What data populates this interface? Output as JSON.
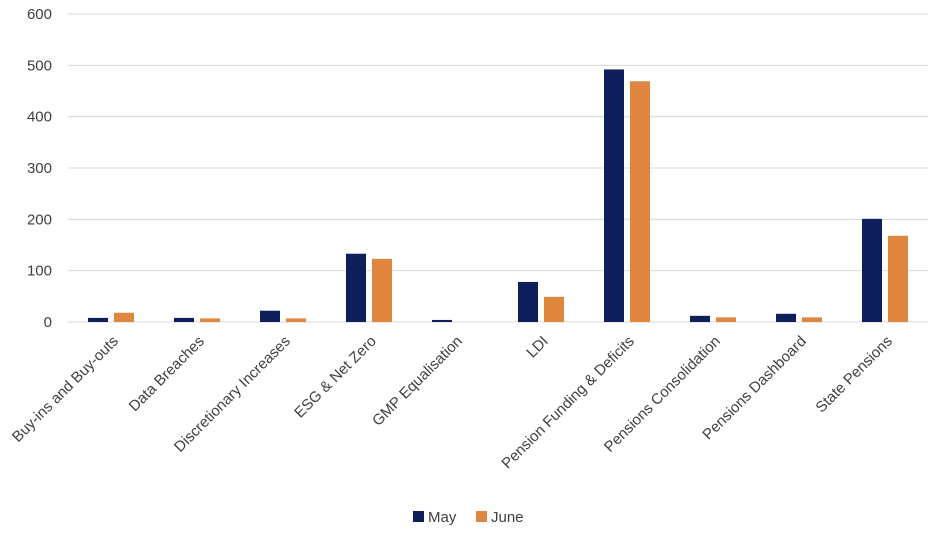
{
  "chart_data": {
    "type": "bar",
    "categories": [
      "Buy-ins and Buy-outs",
      "Data Breaches",
      "Discretionary Increases",
      "ESG & Net Zero",
      "GMP Equalisation",
      "LDI",
      "Pension Funding & Deficits",
      "Pensions Consolidation",
      "Pensions Dashboard",
      "State Pensions"
    ],
    "series": [
      {
        "name": "May",
        "color": "#0e1f5b",
        "values": [
          8,
          8,
          22,
          133,
          4,
          78,
          492,
          12,
          16,
          201
        ]
      },
      {
        "name": "June",
        "color": "#e0873f",
        "values": [
          18,
          7,
          7,
          123,
          0,
          49,
          469,
          9,
          9,
          168
        ]
      }
    ],
    "yticks": [
      "0",
      "100",
      "200",
      "300",
      "400",
      "500",
      "600"
    ],
    "ylim": [
      0,
      600
    ],
    "grid": true,
    "legend_position": "bottom-center"
  }
}
